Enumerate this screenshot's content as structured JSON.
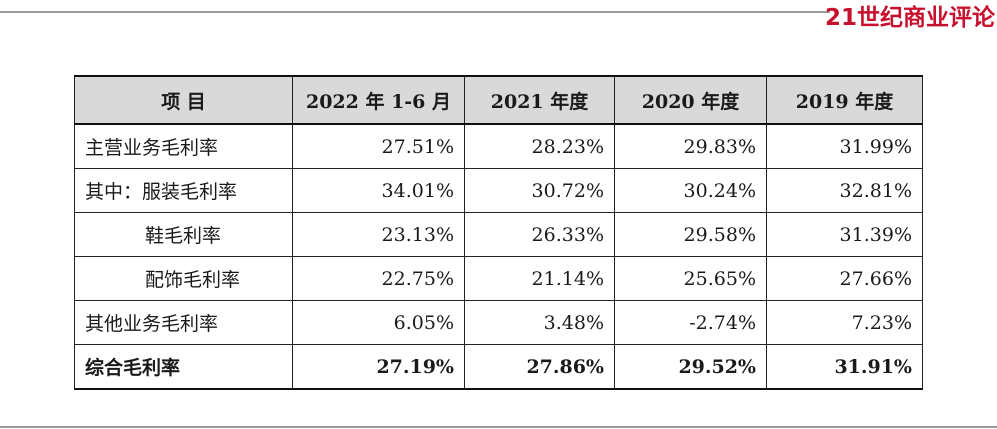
{
  "brand": "21世纪商业评论",
  "table": {
    "headers": [
      "项 目",
      "2022 年 1-6 月",
      "2021 年度",
      "2020 年度",
      "2019 年度"
    ],
    "rows": [
      {
        "label": "主营业务毛利率",
        "values": [
          "27.51%",
          "28.23%",
          "29.83%",
          "31.99%"
        ]
      },
      {
        "label": "其中：服装毛利率",
        "values": [
          "34.01%",
          "30.72%",
          "30.24%",
          "32.81%"
        ]
      },
      {
        "label": "鞋毛利率",
        "values": [
          "23.13%",
          "26.33%",
          "29.58%",
          "31.39%"
        ]
      },
      {
        "label": "配饰毛利率",
        "values": [
          "22.75%",
          "21.14%",
          "25.65%",
          "27.66%"
        ]
      },
      {
        "label": "其他业务毛利率",
        "values": [
          "6.05%",
          "3.48%",
          "-2.74%",
          "7.23%"
        ]
      },
      {
        "label": "综合毛利率",
        "values": [
          "27.19%",
          "27.86%",
          "29.52%",
          "31.91%"
        ]
      }
    ]
  }
}
